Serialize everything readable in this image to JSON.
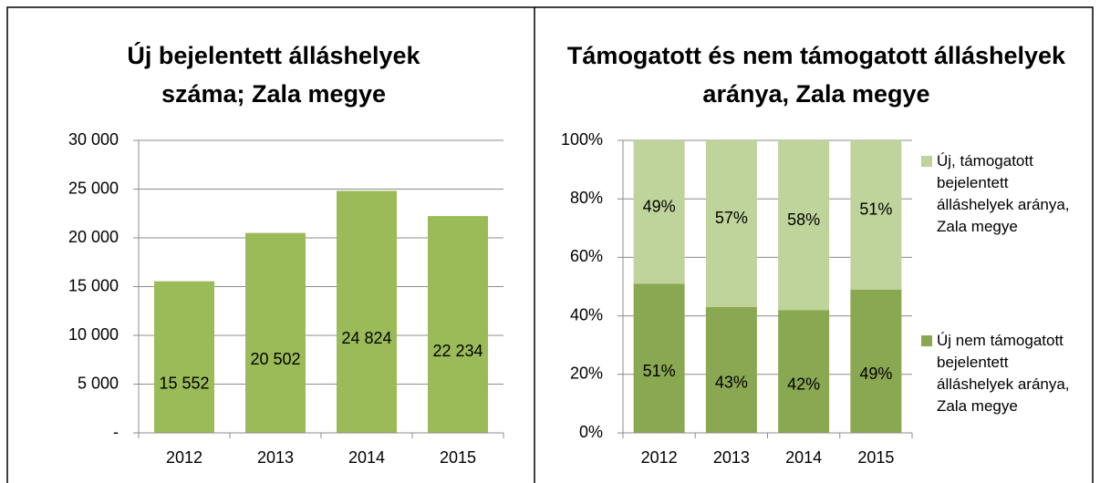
{
  "chart_data": [
    {
      "type": "bar",
      "title": "Új bejelentett álláshelyek száma; Zala megye",
      "categories": [
        "2012",
        "2013",
        "2014",
        "2015"
      ],
      "values": [
        15552,
        20502,
        24824,
        22234
      ],
      "value_labels": [
        "15 552",
        "20 502",
        "24 824",
        "22 234"
      ],
      "color": "#9bbb59",
      "ylim": [
        0,
        30000
      ],
      "yticks": [
        {
          "value": 0,
          "label": "-"
        },
        {
          "value": 5000,
          "label": "5 000"
        },
        {
          "value": 10000,
          "label": "10 000"
        },
        {
          "value": 15000,
          "label": "15 000"
        },
        {
          "value": 20000,
          "label": "20 000"
        },
        {
          "value": 25000,
          "label": "25 000"
        },
        {
          "value": 30000,
          "label": "30 000"
        }
      ],
      "grid": true
    },
    {
      "type": "stacked_bar",
      "title": "Támogatott és nem támogatott álláshelyek aránya, Zala megye",
      "categories": [
        "2012",
        "2013",
        "2014",
        "2015"
      ],
      "series": [
        {
          "name": "Új nem támogatott bejelentett álláshelyek aránya, Zala megye",
          "color": "#8aa752",
          "values": [
            51,
            43,
            42,
            49
          ],
          "value_labels": [
            "51%",
            "43%",
            "42%",
            "49%"
          ]
        },
        {
          "name": "Új, támogatott bejelentett álláshelyek aránya, Zala megye",
          "color": "#bed49a",
          "values": [
            49,
            57,
            58,
            51
          ],
          "value_labels": [
            "49%",
            "57%",
            "58%",
            "51%"
          ]
        }
      ],
      "ylim": [
        0,
        100
      ],
      "yticks": [
        {
          "value": 0,
          "label": "0%"
        },
        {
          "value": 20,
          "label": "20%"
        },
        {
          "value": 40,
          "label": "40%"
        },
        {
          "value": 60,
          "label": "60%"
        },
        {
          "value": 80,
          "label": "80%"
        },
        {
          "value": 100,
          "label": "100%"
        }
      ],
      "grid": true,
      "legend": "right"
    }
  ]
}
